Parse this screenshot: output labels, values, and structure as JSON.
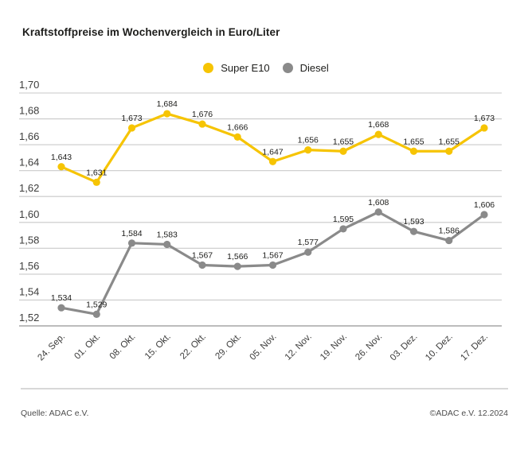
{
  "title": "Kraftstoffpreise im Wochenvergleich in Euro/Liter",
  "footer": {
    "source": "Quelle: ADAC e.V.",
    "copyright": "©ADAC e.V. 12.2024"
  },
  "colors": {
    "grid": "#c9c9c9",
    "axis": "#a6a6a6",
    "value_label_text": "#1d1d1b",
    "tick_text": "#3c3c3b"
  },
  "chart_data": {
    "type": "line",
    "title": "Kraftstoffpreise im Wochenvergleich in Euro/Liter",
    "xlabel": "",
    "ylabel": "Euro/Liter",
    "categories": [
      "24. Sep.",
      "01. Okt.",
      "08. Okt.",
      "15. Okt.",
      "22. Okt.",
      "29. Okt.",
      "05. Nov.",
      "12. Nov.",
      "19. Nov.",
      "26. Nov.",
      "03. Dez.",
      "10. Dez.",
      "17. Dez."
    ],
    "series": [
      {
        "name": "Super E10",
        "color": "#f6c403",
        "values": [
          1.643,
          1.631,
          1.673,
          1.684,
          1.676,
          1.666,
          1.647,
          1.656,
          1.655,
          1.668,
          1.655,
          1.655,
          1.673
        ]
      },
      {
        "name": "Diesel",
        "color": "#8a8a8a",
        "values": [
          1.534,
          1.529,
          1.584,
          1.583,
          1.567,
          1.566,
          1.567,
          1.577,
          1.595,
          1.608,
          1.593,
          1.586,
          1.606
        ]
      }
    ],
    "ylim": [
      1.52,
      1.7
    ],
    "ytick_step": 0.02,
    "grid": true,
    "legend_position": "top-center",
    "decimal_separator": ",",
    "y_tick_decimals": 2,
    "value_decimals": 3
  }
}
